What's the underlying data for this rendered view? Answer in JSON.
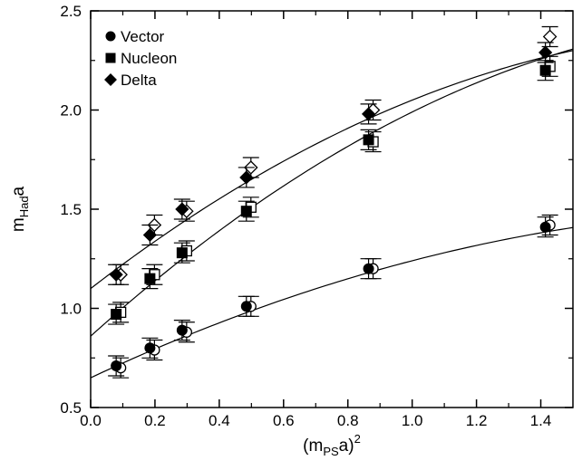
{
  "chart_data": {
    "type": "scatter",
    "title": "",
    "xlabel": {
      "base": "(m",
      "sub": "PS",
      "tail": "a)",
      "sup": "2"
    },
    "ylabel": {
      "base": "m",
      "sub": "Had",
      "tail": "a"
    },
    "xlim": [
      0.0,
      1.5
    ],
    "ylim": [
      0.5,
      2.5
    ],
    "xticks": [
      "0.0",
      "0.2",
      "0.4",
      "0.6",
      "0.8",
      "1.0",
      "1.2",
      "1.4"
    ],
    "yticks": [
      "0.5",
      "1.0",
      "1.5",
      "2.0",
      "2.5"
    ],
    "grid": false,
    "legend_position": "top-left",
    "series": [
      {
        "name": "Vector",
        "marker": "circle",
        "x": [
          0.085,
          0.19,
          0.29,
          0.49,
          0.87,
          1.42
        ],
        "y": [
          0.71,
          0.8,
          0.89,
          1.01,
          1.2,
          1.41
        ],
        "open_y": [
          0.7,
          0.79,
          0.88,
          1.01,
          1.2,
          1.42
        ],
        "fit": {
          "x": [
            0.0,
            1.5
          ],
          "a": 0.65,
          "b": 0.76,
          "c": -0.17
        }
      },
      {
        "name": "Nucleon",
        "marker": "square",
        "x": [
          0.085,
          0.19,
          0.29,
          0.49,
          0.87,
          1.42
        ],
        "y": [
          0.97,
          1.15,
          1.28,
          1.49,
          1.85,
          2.2
        ],
        "open_y": [
          0.98,
          1.17,
          1.29,
          1.51,
          1.84,
          2.22
        ],
        "fit": {
          "x": [
            0.0,
            1.5
          ],
          "a": 0.86,
          "b": 1.46,
          "c": -0.33
        }
      },
      {
        "name": "Delta",
        "marker": "diamond",
        "x": [
          0.085,
          0.19,
          0.29,
          0.49,
          0.87,
          1.42
        ],
        "y": [
          1.17,
          1.37,
          1.5,
          1.66,
          1.98,
          2.29
        ],
        "open_y": [
          1.17,
          1.42,
          1.49,
          1.71,
          2.0,
          2.37
        ],
        "fit": {
          "x": [
            0.0,
            1.5
          ],
          "a": 1.1,
          "b": 1.25,
          "c": -0.3
        }
      }
    ]
  }
}
